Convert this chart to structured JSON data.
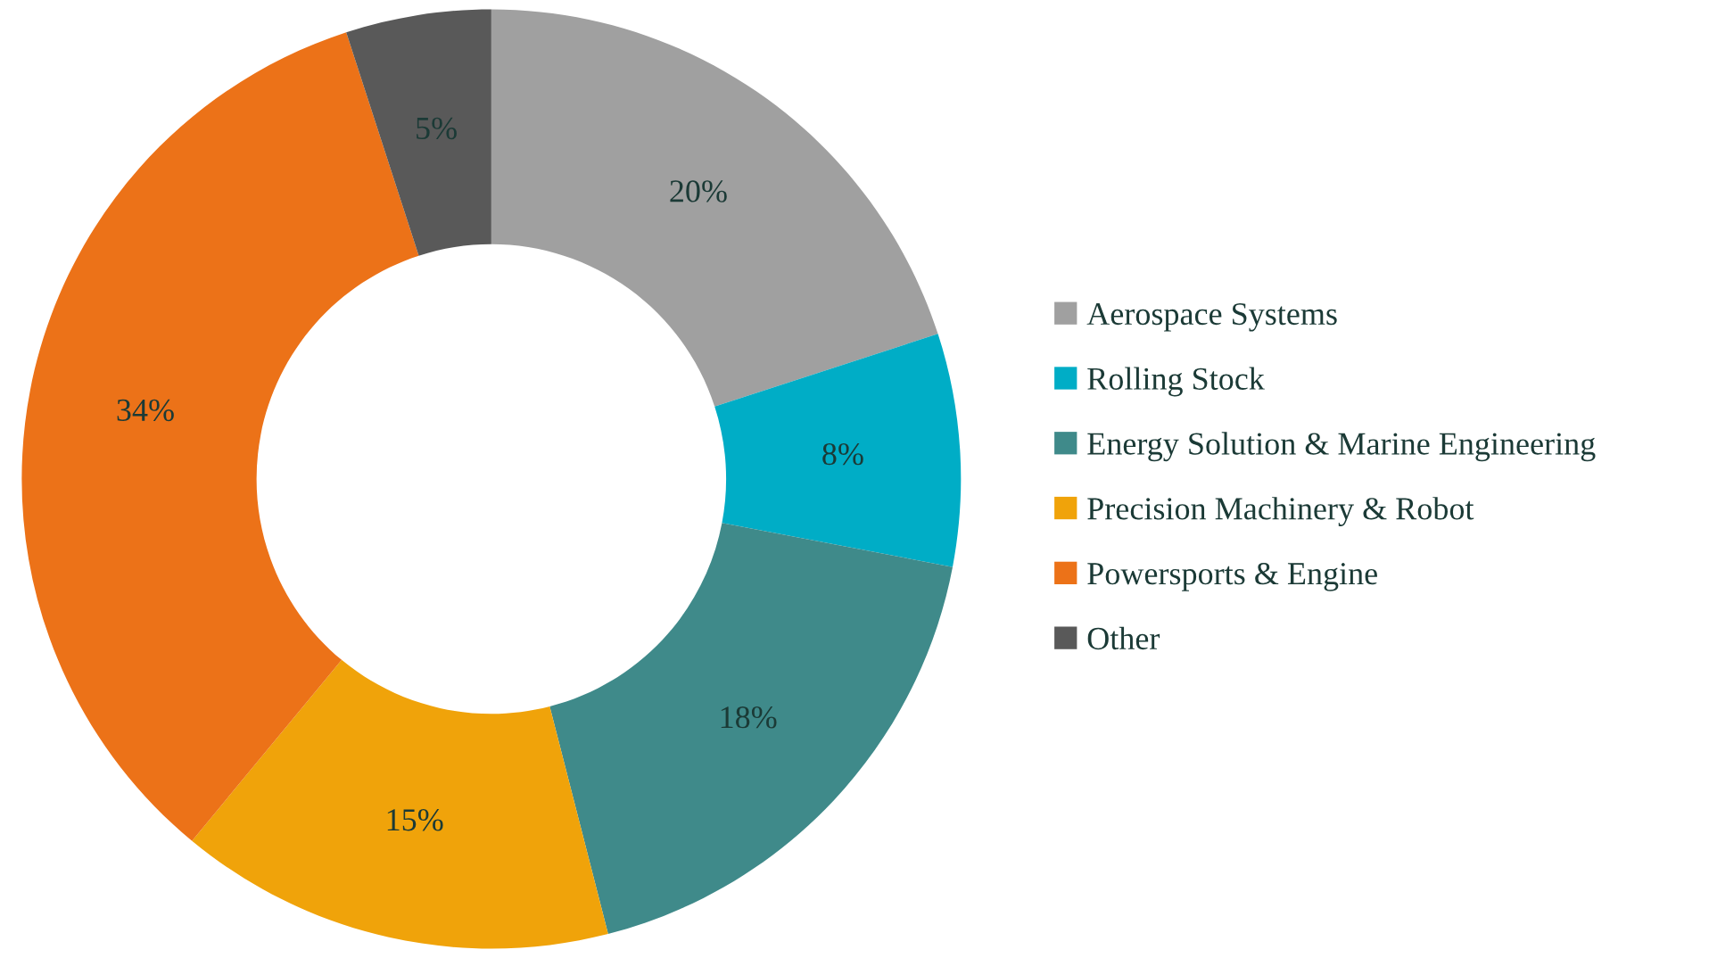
{
  "chart_data": {
    "type": "donut",
    "categories": [
      "Aerospace Systems",
      "Rolling Stock",
      "Energy Solution & Marine Engineering",
      "Precision Machinery & Robot",
      "Powersports & Engine",
      "Other"
    ],
    "values": [
      20,
      8,
      18,
      15,
      34,
      5
    ],
    "colors": [
      "#a0a0a0",
      "#00adc6",
      "#3f8a8a",
      "#f0a30a",
      "#ec7218",
      "#595959"
    ],
    "value_labels": [
      "20%",
      "8%",
      "18%",
      "15%",
      "34%",
      "5%"
    ],
    "legend": "right"
  }
}
